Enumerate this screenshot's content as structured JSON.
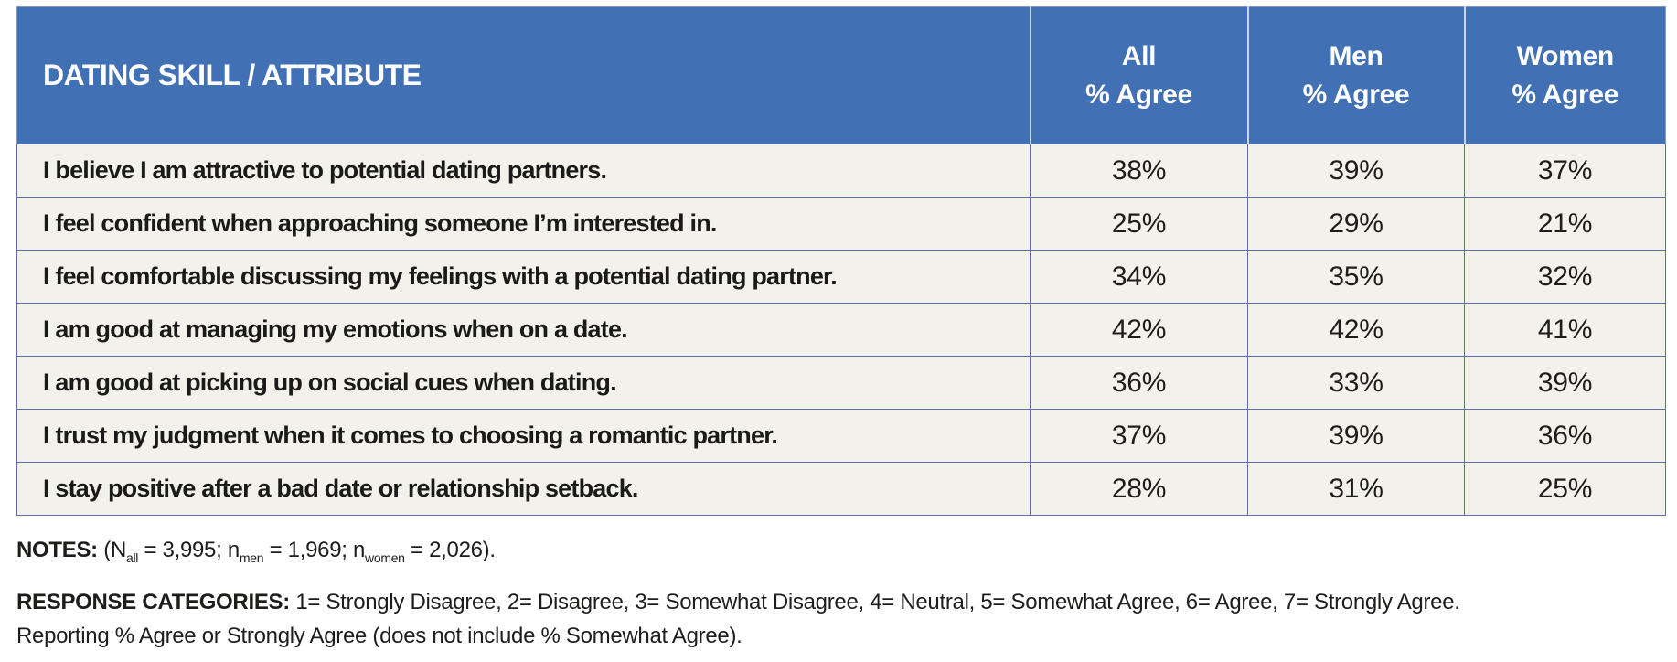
{
  "colors": {
    "header_blue": "#4170b4",
    "row_background": "#f2f1eb",
    "grid_line": "#5c6fa4",
    "header_text": "#ffffff",
    "body_text": "#1d1d1b"
  },
  "table": {
    "header": {
      "skill_label": "DATING SKILL / ATTRIBUTE",
      "columns": [
        {
          "group": "All",
          "measure": "% Agree"
        },
        {
          "group": "Men",
          "measure": "% Agree"
        },
        {
          "group": "Women",
          "measure": "% Agree"
        }
      ]
    },
    "rows": [
      {
        "statement": "I believe I am attractive to potential dating partners.",
        "all": "38%",
        "men": "39%",
        "women": "37%"
      },
      {
        "statement": "I feel confident when approaching someone I’m interested in.",
        "all": "25%",
        "men": "29%",
        "women": "21%"
      },
      {
        "statement": "I feel comfortable discussing my feelings with a potential dating partner.",
        "all": "34%",
        "men": "35%",
        "women": "32%"
      },
      {
        "statement": "I am good at managing my emotions when on a date.",
        "all": "42%",
        "men": "42%",
        "women": "41%"
      },
      {
        "statement": "I am good at picking up on social cues when dating.",
        "all": "36%",
        "men": "33%",
        "women": "39%"
      },
      {
        "statement": "I trust my judgment when it comes to choosing a romantic partner.",
        "all": "37%",
        "men": "39%",
        "women": "36%"
      },
      {
        "statement": "I stay positive after a bad date or relationship setback.",
        "all": "28%",
        "men": "31%",
        "women": "25%"
      }
    ]
  },
  "notes": {
    "label": "NOTES:",
    "part1": "(N",
    "sub1": "all",
    "part2": " = 3,995; n",
    "sub2": "men",
    "part3": " = 1,969; n",
    "sub3": "women",
    "part4": " = 2,026)."
  },
  "response_categories": {
    "label": "RESPONSE CATEGORIES:",
    "line1": "1= Strongly Disagree, 2= Disagree, 3= Somewhat Disagree, 4= Neutral, 5= Somewhat Agree, 6= Agree, 7= Strongly Agree.",
    "line2": "Reporting % Agree or Strongly Agree (does not include % Somewhat Agree)."
  },
  "chart_data": {
    "type": "table",
    "title": "DATING SKILL / ATTRIBUTE",
    "categories": [
      "I believe I am attractive to potential dating partners.",
      "I feel confident when approaching someone I’m interested in.",
      "I feel comfortable discussing my feelings with a potential dating partner.",
      "I am good at managing my emotions when on a date.",
      "I am good at picking up on social cues when dating.",
      "I trust my judgment when it comes to choosing a romantic partner.",
      "I stay positive after a bad date or relationship setback."
    ],
    "series": [
      {
        "name": "All % Agree",
        "values": [
          38,
          25,
          34,
          42,
          36,
          37,
          28
        ]
      },
      {
        "name": "Men % Agree",
        "values": [
          39,
          29,
          35,
          42,
          33,
          39,
          31
        ]
      },
      {
        "name": "Women % Agree",
        "values": [
          37,
          21,
          32,
          41,
          39,
          36,
          25
        ]
      }
    ],
    "sample_sizes": {
      "N_all": 3995,
      "n_men": 1969,
      "n_women": 2026
    },
    "notes": "NOTES: (N all = 3,995; n men = 1,969; n women = 2,026).",
    "response_scale": "1= Strongly Disagree, 2= Disagree, 3= Somewhat Disagree, 4= Neutral, 5= Somewhat Agree, 6= Agree, 7= Strongly Agree. Reporting % Agree or Strongly Agree (does not include % Somewhat Agree)."
  }
}
